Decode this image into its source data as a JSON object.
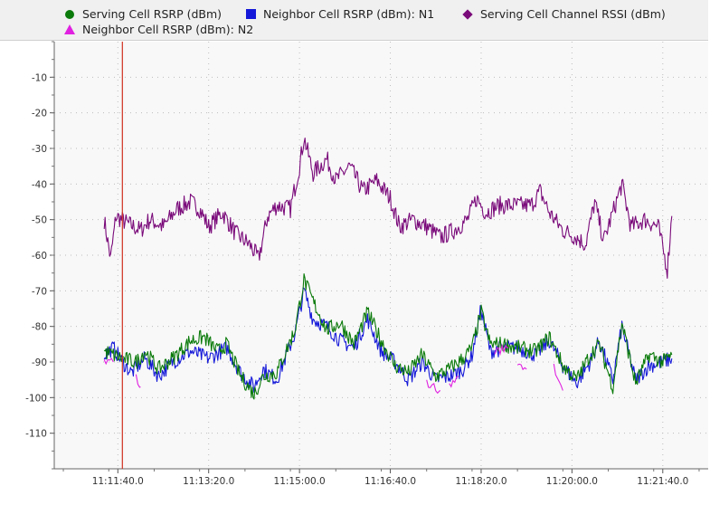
{
  "colors": {
    "serving_rsrp": "#0a7a0a",
    "neighbor_n1": "#1418d8",
    "serving_rssi": "#7a0a7a",
    "neighbor_n2": "#e020e0",
    "cursor": "#d03020",
    "grid": "#bdbdbd",
    "plot_bg": "#f8f8f8"
  },
  "legend": {
    "items": [
      {
        "label": "Serving Cell RSRP (dBm)",
        "symbol": "circle",
        "color": "#0a7a0a"
      },
      {
        "label": "Neighbor Cell RSRP (dBm): N1",
        "symbol": "square",
        "color": "#1418d8"
      },
      {
        "label": "Serving Cell Channel RSSI (dBm)",
        "symbol": "diamond",
        "color": "#7a0a7a"
      },
      {
        "label": "Neighbor Cell RSRP (dBm): N2",
        "symbol": "triangle",
        "color": "#e020e0"
      }
    ]
  },
  "chart_data": {
    "type": "line",
    "title": "",
    "xlabel": "",
    "ylabel": "",
    "ylim": [
      -120,
      0
    ],
    "xlim": [
      "11:10:30",
      "11:22:30"
    ],
    "y_ticks": [
      "-10",
      "-20",
      "-30",
      "-40",
      "-50",
      "-60",
      "-70",
      "-80",
      "-90",
      "-100",
      "-110"
    ],
    "x_ticks": [
      "11:11:40.0",
      "11:13:20.0",
      "11:15:00.0",
      "11:16:40.0",
      "11:18:20.0",
      "11:20:00.0",
      "11:21:40.0"
    ],
    "cursor_time": "11:11:45",
    "grid": true,
    "legend_position": "top",
    "series": [
      {
        "name": "Serving Cell Channel RSSI (dBm)",
        "color": "#7a0a7a",
        "points": [
          [
            "11:11:25",
            -50
          ],
          [
            "11:11:32",
            -61
          ],
          [
            "11:11:38",
            -49
          ],
          [
            "11:11:50",
            -51
          ],
          [
            "11:12:05",
            -53
          ],
          [
            "11:12:15",
            -50
          ],
          [
            "11:12:30",
            -52
          ],
          [
            "11:12:45",
            -47
          ],
          [
            "11:13:00",
            -45
          ],
          [
            "11:13:10",
            -47
          ],
          [
            "11:13:20",
            -52
          ],
          [
            "11:13:35",
            -48
          ],
          [
            "11:13:50",
            -54
          ],
          [
            "11:14:05",
            -57
          ],
          [
            "11:14:15",
            -61
          ],
          [
            "11:14:25",
            -49
          ],
          [
            "11:14:35",
            -46
          ],
          [
            "11:14:50",
            -47
          ],
          [
            "11:15:00",
            -35
          ],
          [
            "11:15:05",
            -27
          ],
          [
            "11:15:15",
            -37
          ],
          [
            "11:15:30",
            -33
          ],
          [
            "11:15:40",
            -39
          ],
          [
            "11:15:55",
            -35
          ],
          [
            "11:16:10",
            -42
          ],
          [
            "11:16:25",
            -39
          ],
          [
            "11:16:40",
            -44
          ],
          [
            "11:16:50",
            -52
          ],
          [
            "11:17:05",
            -50
          ],
          [
            "11:17:20",
            -52
          ],
          [
            "11:17:35",
            -55
          ],
          [
            "11:17:50",
            -53
          ],
          [
            "11:18:05",
            -50
          ],
          [
            "11:18:15",
            -44
          ],
          [
            "11:18:25",
            -48
          ],
          [
            "11:18:40",
            -46
          ],
          [
            "11:19:00",
            -46
          ],
          [
            "11:19:15",
            -46
          ],
          [
            "11:19:25",
            -42
          ],
          [
            "11:19:35",
            -48
          ],
          [
            "11:19:50",
            -53
          ],
          [
            "11:20:05",
            -55
          ],
          [
            "11:20:15",
            -57
          ],
          [
            "11:20:25",
            -45
          ],
          [
            "11:20:35",
            -56
          ],
          [
            "11:20:45",
            -48
          ],
          [
            "11:20:55",
            -40
          ],
          [
            "11:21:05",
            -52
          ],
          [
            "11:21:20",
            -50
          ],
          [
            "11:21:35",
            -52
          ],
          [
            "11:21:45",
            -64
          ],
          [
            "11:21:50",
            -49
          ]
        ]
      },
      {
        "name": "Neighbor Cell RSRP (dBm): N1",
        "color": "#1418d8",
        "points": [
          [
            "11:11:25",
            -88
          ],
          [
            "11:11:35",
            -86
          ],
          [
            "11:11:45",
            -90
          ],
          [
            "11:11:55",
            -93
          ],
          [
            "11:12:10",
            -89
          ],
          [
            "11:12:25",
            -94
          ],
          [
            "11:12:40",
            -90
          ],
          [
            "11:13:00",
            -87
          ],
          [
            "11:13:20",
            -89
          ],
          [
            "11:13:40",
            -86
          ],
          [
            "11:13:55",
            -93
          ],
          [
            "11:14:10",
            -97
          ],
          [
            "11:14:20",
            -92
          ],
          [
            "11:14:35",
            -95
          ],
          [
            "11:14:55",
            -82
          ],
          [
            "11:15:05",
            -70
          ],
          [
            "11:15:15",
            -78
          ],
          [
            "11:15:30",
            -80
          ],
          [
            "11:15:45",
            -84
          ],
          [
            "11:16:00",
            -86
          ],
          [
            "11:16:15",
            -78
          ],
          [
            "11:16:30",
            -87
          ],
          [
            "11:16:45",
            -90
          ],
          [
            "11:17:00",
            -95
          ],
          [
            "11:17:15",
            -90
          ],
          [
            "11:17:30",
            -95
          ],
          [
            "11:17:45",
            -94
          ],
          [
            "11:18:00",
            -92
          ],
          [
            "11:18:10",
            -88
          ],
          [
            "11:18:20",
            -75
          ],
          [
            "11:18:30",
            -87
          ],
          [
            "11:18:45",
            -86
          ],
          [
            "11:19:00",
            -86
          ],
          [
            "11:19:20",
            -88
          ],
          [
            "11:19:35",
            -84
          ],
          [
            "11:19:50",
            -91
          ],
          [
            "11:20:05",
            -96
          ],
          [
            "11:20:20",
            -90
          ],
          [
            "11:20:30",
            -84
          ],
          [
            "11:20:45",
            -95
          ],
          [
            "11:20:55",
            -80
          ],
          [
            "11:21:10",
            -95
          ],
          [
            "11:21:25",
            -91
          ],
          [
            "11:21:40",
            -90
          ],
          [
            "11:21:50",
            -89
          ]
        ]
      },
      {
        "name": "Serving Cell RSRP (dBm)",
        "color": "#0a7a0a",
        "points": [
          [
            "11:11:25",
            -87
          ],
          [
            "11:11:35",
            -88
          ],
          [
            "11:11:45",
            -89
          ],
          [
            "11:12:00",
            -90
          ],
          [
            "11:12:10",
            -87
          ],
          [
            "11:12:25",
            -92
          ],
          [
            "11:12:40",
            -89
          ],
          [
            "11:13:00",
            -84
          ],
          [
            "11:13:15",
            -83
          ],
          [
            "11:13:30",
            -87
          ],
          [
            "11:13:40",
            -85
          ],
          [
            "11:13:55",
            -94
          ],
          [
            "11:14:10",
            -99
          ],
          [
            "11:14:20",
            -94
          ],
          [
            "11:14:35",
            -93
          ],
          [
            "11:14:55",
            -81
          ],
          [
            "11:15:05",
            -67
          ],
          [
            "11:15:15",
            -73
          ],
          [
            "11:15:30",
            -81
          ],
          [
            "11:15:45",
            -79
          ],
          [
            "11:16:00",
            -85
          ],
          [
            "11:16:15",
            -76
          ],
          [
            "11:16:30",
            -84
          ],
          [
            "11:16:45",
            -91
          ],
          [
            "11:17:00",
            -93
          ],
          [
            "11:17:15",
            -88
          ],
          [
            "11:17:30",
            -94
          ],
          [
            "11:17:45",
            -92
          ],
          [
            "11:18:00",
            -89
          ],
          [
            "11:18:10",
            -86
          ],
          [
            "11:18:20",
            -76
          ],
          [
            "11:18:30",
            -85
          ],
          [
            "11:18:45",
            -85
          ],
          [
            "11:19:00",
            -86
          ],
          [
            "11:19:20",
            -87
          ],
          [
            "11:19:35",
            -83
          ],
          [
            "11:19:50",
            -91
          ],
          [
            "11:20:05",
            -95
          ],
          [
            "11:20:20",
            -88
          ],
          [
            "11:20:30",
            -85
          ],
          [
            "11:20:45",
            -97
          ],
          [
            "11:20:55",
            -79
          ],
          [
            "11:21:10",
            -96
          ],
          [
            "11:21:25",
            -88
          ],
          [
            "11:21:40",
            -90
          ],
          [
            "11:21:50",
            -88
          ]
        ]
      },
      {
        "name": "Neighbor Cell RSRP (dBm): N2",
        "color": "#e020e0",
        "segments": [
          [
            [
              "11:11:25",
              -90
            ],
            [
              "11:11:35",
              -90
            ]
          ],
          [
            [
              "11:12:00",
              -94
            ],
            [
              "11:12:05",
              -97
            ]
          ],
          [
            [
              "11:17:20",
              -96
            ],
            [
              "11:17:35",
              -98
            ]
          ],
          [
            [
              "11:17:45",
              -97
            ],
            [
              "11:17:55",
              -94
            ]
          ],
          [
            [
              "11:18:35",
              -87
            ],
            [
              "11:18:50",
              -86
            ]
          ],
          [
            [
              "11:19:00",
              -90
            ],
            [
              "11:19:10",
              -92
            ]
          ],
          [
            [
              "11:19:40",
              -91
            ],
            [
              "11:19:50",
              -98
            ]
          ]
        ]
      }
    ]
  }
}
